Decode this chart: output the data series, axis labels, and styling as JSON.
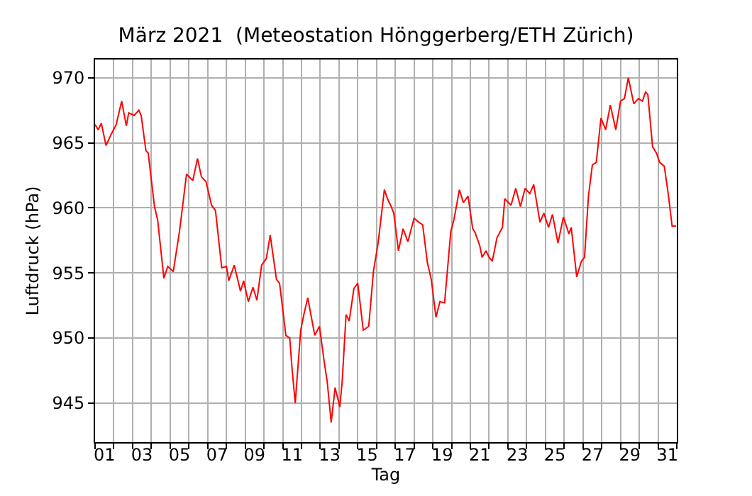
{
  "chart_data": {
    "type": "line",
    "title": "März 2021  (Meteostation Hönggerberg/ETH Zürich)",
    "xlabel": "Tag",
    "ylabel": "Luftdruck (hPa)",
    "x": [
      "2021-03-01T00:00",
      "2021-03-01T04:00",
      "2021-03-01T08:00",
      "2021-03-01T14:00",
      "2021-03-01T21:00",
      "2021-03-02T03:00",
      "2021-03-02T10:00",
      "2021-03-02T16:00",
      "2021-03-02T19:00",
      "2021-03-03T02:00",
      "2021-03-03T08:00",
      "2021-03-03T11:00",
      "2021-03-03T17:00",
      "2021-03-03T20:00",
      "2021-03-04T04:00",
      "2021-03-04T08:00",
      "2021-03-04T16:00",
      "2021-03-04T21:00",
      "2021-03-05T04:00",
      "2021-03-05T12:00",
      "2021-03-05T21:00",
      "2021-03-06T05:00",
      "2021-03-06T11:00",
      "2021-03-06T16:00",
      "2021-03-06T22:00",
      "2021-03-07T05:00",
      "2021-03-07T10:00",
      "2021-03-07T18:00",
      "2021-03-08T00:00",
      "2021-03-08T03:00",
      "2021-03-08T10:00",
      "2021-03-08T18:00",
      "2021-03-08T22:00",
      "2021-03-09T04:00",
      "2021-03-09T10:00",
      "2021-03-09T15:00",
      "2021-03-09T21:00",
      "2021-03-10T03:00",
      "2021-03-10T08:00",
      "2021-03-10T16:00",
      "2021-03-10T20:00",
      "2021-03-11T04:00",
      "2021-03-11T09:00",
      "2021-03-11T12:00",
      "2021-03-11T16:00",
      "2021-03-11T23:00",
      "2021-03-12T03:00",
      "2021-03-12T08:00",
      "2021-03-12T12:00",
      "2021-03-12T17:00",
      "2021-03-12T23:00",
      "2021-03-13T05:00",
      "2021-03-13T09:00",
      "2021-03-13T14:00",
      "2021-03-13T19:00",
      "2021-03-14T01:00",
      "2021-03-14T04:00",
      "2021-03-14T09:00",
      "2021-03-14T13:00",
      "2021-03-14T19:00",
      "2021-03-15T00:00",
      "2021-03-15T07:00",
      "2021-03-15T14:00",
      "2021-03-15T20:00",
      "2021-03-16T02:00",
      "2021-03-16T10:00",
      "2021-03-16T14:00",
      "2021-03-16T18:00",
      "2021-03-16T22:00",
      "2021-03-17T04:00",
      "2021-03-17T10:00",
      "2021-03-17T16:00",
      "2021-03-18T00:00",
      "2021-03-18T06:00",
      "2021-03-18T11:00",
      "2021-03-18T17:00",
      "2021-03-18T22:00",
      "2021-03-19T04:00",
      "2021-03-19T09:00",
      "2021-03-19T15:00",
      "2021-03-19T23:00",
      "2021-03-20T03:00",
      "2021-03-20T10:00",
      "2021-03-20T15:00",
      "2021-03-20T21:00",
      "2021-03-21T03:00",
      "2021-03-21T06:00",
      "2021-03-21T12:00",
      "2021-03-21T15:00",
      "2021-03-21T20:00",
      "2021-03-22T00:00",
      "2021-03-22T04:00",
      "2021-03-22T10:00",
      "2021-03-22T17:00",
      "2021-03-22T20:00",
      "2021-03-23T04:00",
      "2021-03-23T10:00",
      "2021-03-23T16:00",
      "2021-03-23T22:00",
      "2021-03-24T04:00",
      "2021-03-24T09:00",
      "2021-03-24T17:00",
      "2021-03-24T22:00",
      "2021-03-25T04:00",
      "2021-03-25T09:00",
      "2021-03-25T16:00",
      "2021-03-25T23:00",
      "2021-03-26T06:00",
      "2021-03-26T09:00",
      "2021-03-26T16:00",
      "2021-03-26T22:00",
      "2021-03-27T02:00",
      "2021-03-27T07:00",
      "2021-03-27T12:00",
      "2021-03-27T17:00",
      "2021-03-27T23:00",
      "2021-03-28T05:00",
      "2021-03-28T11:00",
      "2021-03-28T18:00",
      "2021-03-29T00:00",
      "2021-03-29T05:00",
      "2021-03-29T10:00",
      "2021-03-29T17:00",
      "2021-03-29T23:00",
      "2021-03-30T04:00",
      "2021-03-30T08:00",
      "2021-03-30T11:00",
      "2021-03-30T17:00",
      "2021-03-30T22:00",
      "2021-03-31T02:00",
      "2021-03-31T08:00",
      "2021-03-31T13:00",
      "2021-03-31T18:00",
      "2021-03-31T23:00"
    ],
    "series": [
      {
        "color": "#ff0000",
        "values": [
          966.4,
          966.0,
          966.5,
          964.8,
          965.7,
          966.4,
          968.2,
          966.3,
          967.3,
          967.1,
          967.5,
          967.1,
          964.4,
          964.2,
          960.1,
          959.1,
          954.6,
          955.5,
          955.1,
          958.2,
          962.6,
          962.1,
          963.8,
          962.4,
          962.0,
          960.2,
          959.8,
          955.4,
          955.5,
          954.4,
          955.6,
          953.6,
          954.4,
          952.8,
          953.9,
          952.9,
          955.6,
          956.1,
          957.9,
          954.5,
          954.2,
          950.2,
          950.0,
          947.6,
          945.0,
          950.6,
          951.8,
          953.1,
          951.8,
          950.2,
          950.9,
          948.2,
          946.6,
          943.5,
          946.2,
          944.7,
          946.6,
          951.8,
          951.3,
          953.8,
          954.2,
          950.6,
          950.9,
          955.1,
          957.3,
          961.4,
          960.7,
          960.2,
          959.6,
          956.7,
          958.4,
          957.4,
          959.2,
          958.9,
          958.7,
          955.8,
          954.5,
          951.6,
          952.8,
          952.7,
          958.2,
          959.1,
          961.4,
          960.4,
          960.9,
          958.4,
          958.1,
          957.1,
          956.2,
          956.7,
          956.2,
          955.9,
          957.7,
          958.5,
          960.7,
          960.2,
          961.5,
          960.1,
          961.5,
          961.1,
          961.8,
          958.9,
          959.6,
          958.5,
          959.5,
          957.3,
          959.3,
          958.0,
          958.5,
          954.7,
          955.9,
          956.2,
          960.9,
          963.3,
          963.5,
          966.9,
          966.0,
          967.9,
          966.0,
          968.2,
          968.4,
          970.0,
          968.0,
          968.4,
          968.2,
          968.9,
          968.7,
          964.7,
          964.2,
          963.5,
          963.2,
          961.1,
          958.6,
          958.6
        ]
      }
    ],
    "xlim": [
      "2021-03-01T00:00",
      "2021-04-01T00:00"
    ],
    "xticks": [
      {
        "value": "2021-03-01T00:00",
        "label": null
      },
      {
        "value": "2021-03-02T00:00",
        "label": null
      },
      {
        "value": "2021-03-03T00:00",
        "label": null
      },
      {
        "value": "2021-03-04T00:00",
        "label": null
      },
      {
        "value": "2021-03-05T00:00",
        "label": null
      },
      {
        "value": "2021-03-06T00:00",
        "label": null
      },
      {
        "value": "2021-03-07T00:00",
        "label": null
      },
      {
        "value": "2021-03-08T00:00",
        "label": null
      },
      {
        "value": "2021-03-09T00:00",
        "label": null
      },
      {
        "value": "2021-03-10T00:00",
        "label": null
      },
      {
        "value": "2021-03-11T00:00",
        "label": null
      },
      {
        "value": "2021-03-12T00:00",
        "label": null
      },
      {
        "value": "2021-03-13T00:00",
        "label": null
      },
      {
        "value": "2021-03-14T00:00",
        "label": null
      },
      {
        "value": "2021-03-15T00:00",
        "label": null
      },
      {
        "value": "2021-03-16T00:00",
        "label": null
      },
      {
        "value": "2021-03-17T00:00",
        "label": null
      },
      {
        "value": "2021-03-18T00:00",
        "label": null
      },
      {
        "value": "2021-03-19T00:00",
        "label": null
      },
      {
        "value": "2021-03-20T00:00",
        "label": null
      },
      {
        "value": "2021-03-21T00:00",
        "label": null
      },
      {
        "value": "2021-03-22T00:00",
        "label": null
      },
      {
        "value": "2021-03-23T00:00",
        "label": null
      },
      {
        "value": "2021-03-24T00:00",
        "label": null
      },
      {
        "value": "2021-03-25T00:00",
        "label": null
      },
      {
        "value": "2021-03-26T00:00",
        "label": null
      },
      {
        "value": "2021-03-27T00:00",
        "label": null
      },
      {
        "value": "2021-03-28T00:00",
        "label": null
      },
      {
        "value": "2021-03-29T00:00",
        "label": null
      },
      {
        "value": "2021-03-30T00:00",
        "label": null
      },
      {
        "value": "2021-03-31T00:00",
        "label": null
      },
      {
        "value": "2021-04-01T00:00",
        "label": null
      },
      {
        "value": "2021-03-01T12:00",
        "label": "01"
      },
      {
        "value": "2021-03-03T12:00",
        "label": "03"
      },
      {
        "value": "2021-03-05T12:00",
        "label": "05"
      },
      {
        "value": "2021-03-07T12:00",
        "label": "07"
      },
      {
        "value": "2021-03-09T12:00",
        "label": "09"
      },
      {
        "value": "2021-03-11T12:00",
        "label": "11"
      },
      {
        "value": "2021-03-13T12:00",
        "label": "13"
      },
      {
        "value": "2021-03-15T12:00",
        "label": "15"
      },
      {
        "value": "2021-03-17T12:00",
        "label": "17"
      },
      {
        "value": "2021-03-19T12:00",
        "label": "19"
      },
      {
        "value": "2021-03-21T12:00",
        "label": "21"
      },
      {
        "value": "2021-03-23T12:00",
        "label": "23"
      },
      {
        "value": "2021-03-25T12:00",
        "label": "25"
      },
      {
        "value": "2021-03-27T12:00",
        "label": "27"
      },
      {
        "value": "2021-03-29T12:00",
        "label": "29"
      },
      {
        "value": "2021-03-31T12:00",
        "label": "31"
      }
    ],
    "ylim": [
      942,
      971.4
    ],
    "yticks": [
      945,
      950,
      955,
      960,
      965,
      970
    ],
    "grid": true,
    "line_style": "solid"
  }
}
